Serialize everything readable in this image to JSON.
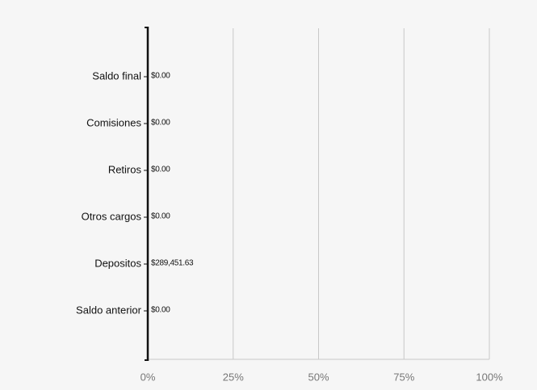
{
  "chart_data": {
    "type": "hbar",
    "categories": [
      "Saldo final",
      "Comisiones",
      "Retiros",
      "Otros cargos",
      "Depositos",
      "Saldo anterior"
    ],
    "values": [
      0,
      0,
      0,
      0,
      289451.63,
      0
    ],
    "value_labels": [
      "$0.00",
      "$0.00",
      "$0.00",
      "$0.00",
      "$289,451.63",
      "$0.00"
    ],
    "color": "none",
    "xlim": [
      0,
      100
    ],
    "xticks": [
      {
        "value": 0,
        "label": "0%"
      },
      {
        "value": 25,
        "label": "25%"
      },
      {
        "value": 50,
        "label": "50%"
      },
      {
        "value": 75,
        "label": "75%"
      },
      {
        "value": 100,
        "label": "100%"
      }
    ],
    "grid": true
  }
}
